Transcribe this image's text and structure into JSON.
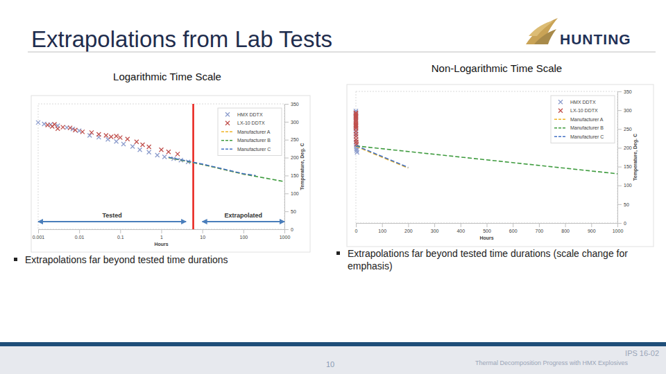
{
  "slide": {
    "title": "Extrapolations from Lab Tests",
    "logo": "HUNTING",
    "bullets": [
      "Extrapolations far beyond tested time durations",
      "Extrapolations far beyond tested time durations (scale change for emphasis)"
    ],
    "footer": {
      "page": "10",
      "code": "IPS 16-02",
      "text": "Thermal Decomposition Progress with HMX Explosives"
    }
  },
  "chart_data": [
    {
      "type": "scatter",
      "title": "Logarithmic Time Scale",
      "x_label": "Hours",
      "y_label": "Temperature, Deg. C",
      "log": "x",
      "xlim": [
        0.001,
        1000
      ],
      "xticks": [
        0.001,
        0.01,
        0.1,
        1,
        10,
        100,
        1000
      ],
      "ylim": [
        0,
        350
      ],
      "yticks": [
        0,
        50,
        100,
        150,
        200,
        250,
        300,
        350
      ],
      "legend": "upper right",
      "series": [
        {
          "name": "HMX DDTX",
          "type": "scatter",
          "marker": "x",
          "color": "#8c9ccc",
          "x": [
            0.001,
            0.0014,
            0.002,
            0.003,
            0.005,
            0.007,
            0.01,
            0.018,
            0.03,
            0.05,
            0.08,
            0.12,
            0.2,
            0.3,
            0.5,
            0.8,
            1.2,
            2,
            3,
            4.5
          ],
          "values": [
            298,
            294,
            292,
            289,
            284,
            280,
            275,
            262,
            257,
            251,
            245,
            238,
            231,
            222,
            215,
            207,
            202,
            197,
            193,
            188
          ]
        },
        {
          "name": "LX-10 DDTX",
          "type": "scatter",
          "marker": "x",
          "color": "#c0504d",
          "x": [
            0.0017,
            0.0022,
            0.0025,
            0.003,
            0.004,
            0.006,
            0.008,
            0.012,
            0.02,
            0.03,
            0.045,
            0.06,
            0.08,
            0.1,
            0.15,
            0.25,
            0.35,
            0.5,
            1,
            1.5,
            2.5
          ],
          "values": [
            291,
            287,
            293,
            281,
            285,
            283,
            277,
            272,
            270,
            265,
            262,
            258,
            260,
            256,
            252,
            244,
            236,
            230,
            222,
            216,
            210
          ]
        },
        {
          "name": "Manufacturer A",
          "type": "line",
          "line_style": "dashed",
          "color": "#f0b323",
          "x": [
            1.5,
            10,
            100,
            200
          ],
          "values": [
            200,
            181,
            154,
            149
          ]
        },
        {
          "name": "Manufacturer B",
          "type": "line",
          "line_style": "dashed",
          "color": "#3e9b3e",
          "x": [
            1.5,
            10,
            100,
            1000
          ],
          "values": [
            200,
            181,
            154,
            133
          ]
        },
        {
          "name": "Manufacturer C",
          "type": "line",
          "line_style": "dashed",
          "color": "#4472c4",
          "x": [
            1.5,
            10,
            100,
            200
          ],
          "values": [
            201,
            182,
            155,
            150
          ]
        }
      ],
      "reference_line": {
        "x": 6,
        "color": "#e8221b"
      },
      "annotations": [
        {
          "text": "Tested",
          "x": [
            0.001,
            4
          ]
        },
        {
          "text": "Extrapolated",
          "x": [
            10,
            1000
          ]
        }
      ]
    },
    {
      "type": "scatter",
      "title": "Non-Logarithmic Time Scale",
      "x_label": "Hours",
      "y_label": "Temperature, Deg. C",
      "xlim": [
        0,
        1000
      ],
      "xticks": [
        0,
        100,
        200,
        300,
        400,
        500,
        600,
        700,
        800,
        900,
        1000
      ],
      "ylim": [
        0,
        350
      ],
      "yticks": [
        0,
        50,
        100,
        150,
        200,
        250,
        300,
        350
      ],
      "legend": "upper right",
      "series": [
        {
          "name": "HMX DDTX",
          "type": "scatter",
          "marker": "x",
          "color": "#8c9ccc",
          "x": [
            0.001,
            0.0014,
            0.002,
            0.003,
            0.005,
            0.007,
            0.01,
            0.018,
            0.03,
            0.05,
            0.08,
            0.12,
            0.2,
            0.3,
            0.5,
            0.8,
            1.2,
            2,
            3,
            4.5
          ],
          "values": [
            298,
            294,
            292,
            289,
            284,
            280,
            275,
            262,
            257,
            251,
            245,
            238,
            231,
            222,
            215,
            207,
            202,
            197,
            193,
            188
          ]
        },
        {
          "name": "LX-10 DDTX",
          "type": "scatter",
          "marker": "x",
          "color": "#c0504d",
          "x": [
            0.0017,
            0.0022,
            0.0025,
            0.003,
            0.004,
            0.006,
            0.008,
            0.012,
            0.02,
            0.03,
            0.045,
            0.06,
            0.08,
            0.1,
            0.15,
            0.25,
            0.35,
            0.5,
            1,
            1.5,
            2.5
          ],
          "values": [
            291,
            287,
            293,
            281,
            285,
            283,
            277,
            272,
            270,
            265,
            262,
            258,
            260,
            256,
            252,
            244,
            236,
            230,
            222,
            216,
            210
          ]
        },
        {
          "name": "Manufacturer A",
          "type": "line",
          "line_style": "dashed",
          "color": "#f0b323",
          "x": [
            0,
            200
          ],
          "values": [
            204,
            146
          ]
        },
        {
          "name": "Manufacturer B",
          "type": "line",
          "line_style": "dashed",
          "color": "#3e9b3e",
          "x": [
            0,
            1000
          ],
          "values": [
            205,
            131
          ]
        },
        {
          "name": "Manufacturer C",
          "type": "line",
          "line_style": "dashed",
          "color": "#4472c4",
          "x": [
            0,
            200
          ],
          "values": [
            206,
            148
          ]
        }
      ]
    }
  ]
}
